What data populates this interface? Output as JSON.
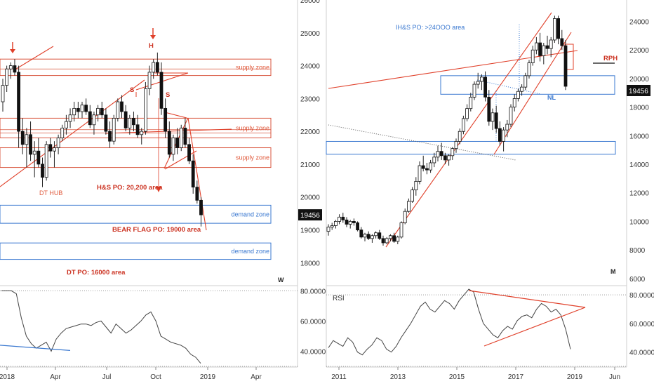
{
  "chart_data": [
    {
      "type": "candlestick",
      "panel": "left-weekly",
      "interval_label": "W",
      "price_axis": {
        "ticks": [
          18000,
          19000,
          20000,
          21000,
          22000,
          23000,
          24000,
          25000,
          26000
        ],
        "ylim": [
          17300,
          26000
        ]
      },
      "time_axis": {
        "labels": [
          "2018",
          "Apr",
          "Jul",
          "Oct",
          "2019",
          "Apr"
        ]
      },
      "last_price": "19456",
      "supply_zones": [
        {
          "label": "supply zone",
          "range": [
            23700,
            24200
          ]
        },
        {
          "label": "supply zone",
          "range": [
            21800,
            22400
          ]
        },
        {
          "label": "supply zone",
          "range": [
            20900,
            21500
          ]
        }
      ],
      "demand_zones": [
        {
          "label": "demand zone",
          "range": [
            19200,
            19750
          ]
        },
        {
          "label": "demand zone",
          "range": [
            18100,
            18600
          ]
        }
      ],
      "annotations": {
        "dt_hub": "DT HUB",
        "hs_po": "H&S PO: 20,200 area",
        "bear_flag_po": "BEAR FLAG PO: 19000 area",
        "dt_po": "DT PO: 16000 area",
        "head": "H",
        "shoulder_left": "S",
        "shoulder_right": "S"
      },
      "rsi": {
        "ticks": [
          "40.0000",
          "60.0000",
          "80.0000"
        ],
        "ylim": [
          30,
          82
        ],
        "values": [
          80,
          80,
          80,
          78,
          62,
          50,
          45,
          42,
          44,
          46,
          40,
          48,
          52,
          55,
          56,
          57,
          58,
          58,
          57,
          59,
          60,
          56,
          52,
          58,
          55,
          52,
          54,
          57,
          60,
          64,
          66,
          60,
          50,
          48,
          46,
          45,
          44,
          42,
          38,
          36,
          32
        ]
      }
    },
    {
      "type": "candlestick",
      "panel": "right-monthly",
      "interval_label": "M",
      "price_axis": {
        "ticks": [
          6000,
          8000,
          10000,
          12000,
          14000,
          16000,
          18000,
          20000,
          22000,
          24000
        ],
        "ylim": [
          5500,
          25500
        ]
      },
      "time_axis": {
        "labels": [
          "2011",
          "2013",
          "2015",
          "2017",
          "2019",
          "Jun"
        ]
      },
      "last_price": "19456",
      "annotations": {
        "ihs_po": "IH&S PO: >24OOO area",
        "rph": "RPH",
        "nl": "NL"
      },
      "rsi": {
        "label": "RSI",
        "ticks": [
          "40.0000",
          "60.0000",
          "80.0000"
        ],
        "ylim": [
          30,
          85
        ],
        "values": [
          43,
          48,
          46,
          44,
          50,
          47,
          40,
          38,
          42,
          45,
          50,
          48,
          42,
          40,
          44,
          50,
          55,
          60,
          66,
          72,
          75,
          70,
          68,
          72,
          76,
          74,
          70,
          76,
          80,
          84,
          82,
          70,
          60,
          56,
          52,
          50,
          55,
          58,
          56,
          62,
          65,
          66,
          64,
          70,
          74,
          72,
          68,
          70,
          66,
          56,
          42
        ]
      }
    }
  ]
}
